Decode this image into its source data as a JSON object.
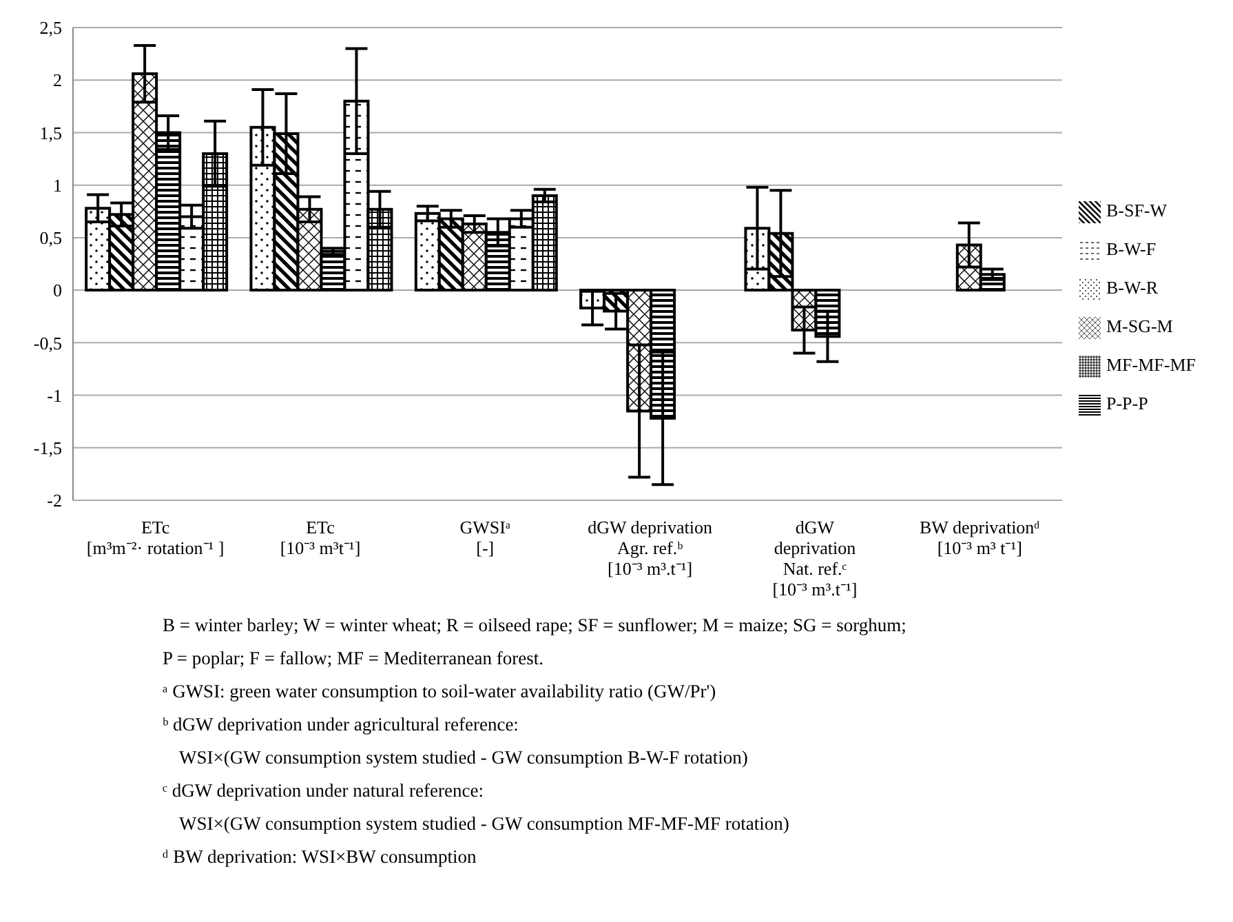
{
  "chart_data": {
    "type": "bar",
    "categories": [
      "ETc\n[m³m⁻²· rotation⁻¹ ]",
      "ETc\n[10⁻³ m³t⁻¹]",
      "GWSIᵃ\n[-]",
      "dGW deprivation\nAgr. ref.ᵇ\n[10⁻³ m³.t⁻¹]",
      "dGW\ndeprivation\nNat. ref.ᶜ\n[10⁻³ m³.t⁻¹]",
      "BW deprivationᵈ\n[10⁻³ m³ t⁻¹]"
    ],
    "series": [
      {
        "name": "B-W-R",
        "color": "#000000",
        "values": [
          0.78,
          1.55,
          0.73,
          -0.17,
          0.59,
          null
        ],
        "errors": [
          0.13,
          0.36,
          0.07,
          0.16,
          0.39,
          null
        ]
      },
      {
        "name": "B-SF-W",
        "color": "#000000",
        "values": [
          0.72,
          1.49,
          0.68,
          -0.2,
          0.54,
          null
        ],
        "errors": [
          0.11,
          0.38,
          0.08,
          0.17,
          0.41,
          null
        ]
      },
      {
        "name": "M-SG-M",
        "color": "#000000",
        "values": [
          2.06,
          0.77,
          0.63,
          -1.15,
          -0.38,
          0.43
        ],
        "errors": [
          0.27,
          0.12,
          0.08,
          0.63,
          0.22,
          0.21
        ]
      },
      {
        "name": "P-P-P",
        "color": "#000000",
        "values": [
          1.5,
          0.37,
          0.55,
          -1.22,
          -0.44,
          0.15
        ],
        "errors": [
          0.16,
          0.03,
          0.13,
          0.63,
          0.24,
          0.05
        ]
      },
      {
        "name": "B-W-F",
        "color": "#000000",
        "values": [
          0.7,
          1.8,
          0.68,
          null,
          null,
          null
        ],
        "errors": [
          0.11,
          0.5,
          0.08,
          null,
          null,
          null
        ]
      },
      {
        "name": "MF-MF-MF",
        "color": "#000000",
        "values": [
          1.3,
          0.77,
          0.9,
          null,
          null,
          null
        ],
        "errors": [
          0.31,
          0.17,
          0.06,
          null,
          null,
          null
        ]
      }
    ],
    "ylim": [
      -2,
      2.5
    ],
    "yticks": [
      {
        "value": -2,
        "label": "-2"
      },
      {
        "value": -1.5,
        "label": "-1,5"
      },
      {
        "value": -1,
        "label": "-1"
      },
      {
        "value": -0.5,
        "label": "-0,5"
      },
      {
        "value": 0,
        "label": "0"
      },
      {
        "value": 0.5,
        "label": "0,5"
      },
      {
        "value": 1,
        "label": "1"
      },
      {
        "value": 1.5,
        "label": "1,5"
      },
      {
        "value": 2,
        "label": "2"
      },
      {
        "value": 2.5,
        "label": "2,5"
      }
    ],
    "grid": "y",
    "legend": "right",
    "annotations": [
      "B = winter barley; W = winter wheat; R = oilseed rape; SF = sunflower; M = maize; SG = sorghum;",
      "P = poplar; F = fallow; MF = Mediterranean forest.",
      "ᵃ GWSI: green water consumption to soil-water availability ratio (GW/Pr')",
      "ᵇ dGW deprivation under agricultural reference:",
      "WSI×(GW consumption system studied - GW consumption B-W-F rotation)",
      "ᶜ dGW deprivation under natural reference:",
      "WSI×(GW consumption system studied - GW consumption MF-MF-MF rotation)",
      "ᵈ BW deprivation: WSI×BW consumption"
    ]
  }
}
